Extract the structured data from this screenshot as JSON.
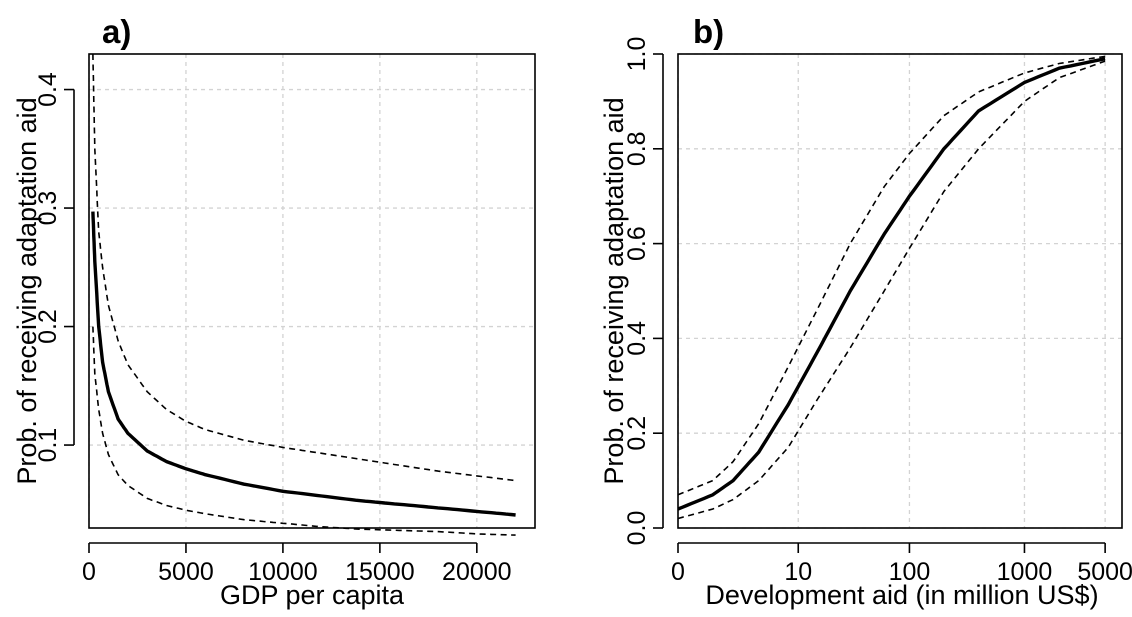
{
  "chart_data": [
    {
      "panel_label": "a)",
      "type": "line",
      "xlabel": "GDP per capita",
      "ylabel": "Prob. of receiving adaptation aid",
      "x_scale": "linear",
      "xlim": [
        0,
        23000
      ],
      "ylim": [
        0.03,
        0.43
      ],
      "x_ticks": [
        0,
        5000,
        10000,
        15000,
        20000
      ],
      "x_tick_labels": [
        "0",
        "5000",
        "10000",
        "15000",
        "20000"
      ],
      "y_ticks": [
        0.1,
        0.2,
        0.3,
        0.4
      ],
      "y_tick_labels": [
        "0.1",
        "0.2",
        "0.3",
        "0.4"
      ],
      "grid": true,
      "series": [
        {
          "style": "solid",
          "x": [
            200,
            300,
            500,
            700,
            1000,
            1500,
            2000,
            3000,
            4000,
            5000,
            6000,
            8000,
            10000,
            12000,
            14000,
            16000,
            18000,
            20000,
            22000
          ],
          "y": [
            0.297,
            0.255,
            0.2,
            0.17,
            0.145,
            0.122,
            0.11,
            0.095,
            0.086,
            0.08,
            0.075,
            0.067,
            0.061,
            0.057,
            0.053,
            0.05,
            0.047,
            0.044,
            0.041
          ]
        },
        {
          "style": "dashed",
          "x": [
            200,
            300,
            500,
            700,
            1000,
            1500,
            2000,
            3000,
            4000,
            5000,
            6000,
            8000,
            10000,
            12000,
            14000,
            16000,
            18000,
            20000,
            22000
          ],
          "y": [
            0.43,
            0.35,
            0.28,
            0.25,
            0.218,
            0.188,
            0.168,
            0.145,
            0.13,
            0.12,
            0.113,
            0.104,
            0.098,
            0.093,
            0.088,
            0.083,
            0.078,
            0.074,
            0.07
          ]
        },
        {
          "style": "dashed",
          "x": [
            200,
            300,
            500,
            700,
            1000,
            1500,
            2000,
            3000,
            4000,
            5000,
            6000,
            8000,
            10000,
            12000,
            14000,
            16000,
            18000,
            20000,
            22000
          ],
          "y": [
            0.2,
            0.16,
            0.13,
            0.11,
            0.092,
            0.075,
            0.066,
            0.055,
            0.049,
            0.045,
            0.042,
            0.037,
            0.034,
            0.031,
            0.029,
            0.028,
            0.027,
            0.025,
            0.024
          ]
        }
      ]
    },
    {
      "panel_label": "b)",
      "type": "line",
      "xlabel": "Development aid (in million US$)",
      "ylabel": "Prob. of receiving adaptation aid",
      "x_scale": "log1p",
      "xlim": [
        0,
        7000
      ],
      "ylim": [
        0,
        1
      ],
      "x_ticks": [
        0,
        10,
        100,
        1000,
        5000
      ],
      "x_tick_labels": [
        "0",
        "10",
        "100",
        "1000",
        "5000"
      ],
      "y_ticks": [
        0,
        0.2,
        0.4,
        0.6,
        0.8,
        1
      ],
      "y_tick_labels": [
        "0.0",
        "0.2",
        "0.4",
        "0.6",
        "0.8",
        "1.0"
      ],
      "grid": true,
      "series": [
        {
          "style": "solid",
          "x": [
            0,
            1,
            2,
            4,
            8,
            15,
            30,
            60,
            100,
            200,
            400,
            1000,
            2000,
            5000
          ],
          "y": [
            0.04,
            0.07,
            0.1,
            0.16,
            0.26,
            0.37,
            0.5,
            0.62,
            0.7,
            0.8,
            0.88,
            0.94,
            0.97,
            0.99
          ]
        },
        {
          "style": "dashed",
          "x": [
            0,
            1,
            2,
            4,
            8,
            15,
            30,
            60,
            100,
            200,
            400,
            1000,
            2000,
            5000
          ],
          "y": [
            0.07,
            0.1,
            0.14,
            0.22,
            0.34,
            0.46,
            0.6,
            0.72,
            0.79,
            0.87,
            0.92,
            0.96,
            0.98,
            0.995
          ]
        },
        {
          "style": "dashed",
          "x": [
            0,
            1,
            2,
            4,
            8,
            15,
            30,
            60,
            100,
            200,
            400,
            1000,
            2000,
            5000
          ],
          "y": [
            0.02,
            0.04,
            0.06,
            0.1,
            0.17,
            0.27,
            0.38,
            0.5,
            0.59,
            0.71,
            0.8,
            0.9,
            0.95,
            0.985
          ]
        }
      ]
    }
  ]
}
